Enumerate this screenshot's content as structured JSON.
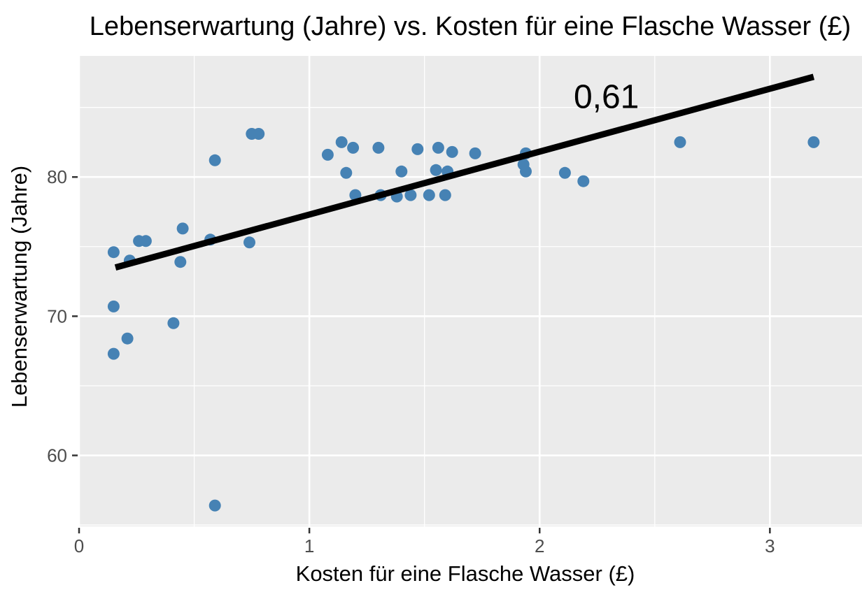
{
  "chart_data": {
    "type": "scatter",
    "title": "Lebenserwartung (Jahre) vs. Kosten für eine Flasche Wasser (£)",
    "xlabel": "Kosten für eine Flasche Wasser (£)",
    "ylabel": "Lebenserwartung (Jahre)",
    "xlim": [
      0,
      3.4
    ],
    "ylim": [
      54.9,
      88.7
    ],
    "x_ticks": [
      0,
      1,
      2,
      3
    ],
    "y_ticks": [
      60,
      70,
      80
    ],
    "x_minor_ticks": [
      0.5,
      1.5,
      2.5
    ],
    "y_minor_ticks": [
      55,
      65,
      75,
      85
    ],
    "grid": "on",
    "legend": "none",
    "panel_bg": "#EBEBEB",
    "grid_color": "#FFFFFF",
    "point_color": "#4682B4",
    "point_radius": 8.5,
    "tick_label_color": "#4D4D4D",
    "text_color": "#000000",
    "annotation": {
      "text": "0,61",
      "x": 2.29,
      "y": 85.8
    },
    "trend_line": {
      "x1": 0.158,
      "y1": 73.5,
      "x2": 3.19,
      "y2": 87.2,
      "color": "#000000",
      "width": 9
    },
    "points": [
      [
        0.15,
        74.6
      ],
      [
        0.22,
        74.0
      ],
      [
        0.26,
        75.4
      ],
      [
        0.29,
        75.4
      ],
      [
        0.44,
        73.9
      ],
      [
        0.45,
        76.3
      ],
      [
        0.15,
        70.7
      ],
      [
        0.41,
        69.5
      ],
      [
        0.21,
        68.4
      ],
      [
        0.15,
        67.3
      ],
      [
        0.57,
        75.5
      ],
      [
        0.74,
        75.3
      ],
      [
        0.59,
        56.4
      ],
      [
        0.59,
        81.2
      ],
      [
        0.75,
        83.1
      ],
      [
        0.78,
        83.1
      ],
      [
        1.08,
        81.6
      ],
      [
        1.14,
        82.5
      ],
      [
        1.19,
        82.1
      ],
      [
        1.3,
        82.1
      ],
      [
        1.16,
        80.3
      ],
      [
        1.2,
        78.7
      ],
      [
        1.31,
        78.7
      ],
      [
        1.38,
        78.6
      ],
      [
        1.44,
        78.7
      ],
      [
        1.52,
        78.7
      ],
      [
        1.59,
        78.7
      ],
      [
        1.4,
        80.4
      ],
      [
        1.47,
        82.0
      ],
      [
        1.56,
        82.1
      ],
      [
        1.62,
        81.8
      ],
      [
        1.72,
        81.7
      ],
      [
        1.55,
        80.5
      ],
      [
        1.6,
        80.4
      ],
      [
        1.94,
        81.7
      ],
      [
        1.93,
        80.9
      ],
      [
        1.94,
        80.4
      ],
      [
        2.11,
        80.3
      ],
      [
        2.19,
        79.7
      ],
      [
        2.61,
        82.5
      ],
      [
        3.19,
        82.5
      ]
    ]
  }
}
